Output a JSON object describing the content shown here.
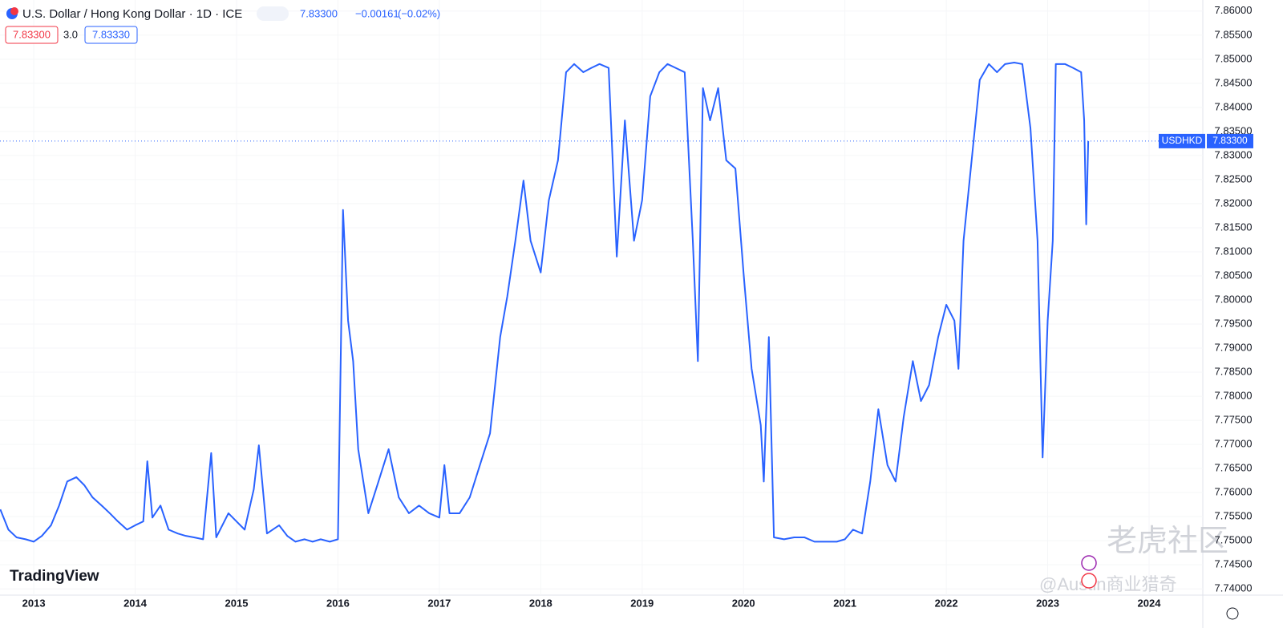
{
  "header": {
    "title": "U.S. Dollar / Hong Kong Dollar · 1D · ICE",
    "price": "7.83300",
    "change": "−0.00161",
    "change_pct": "(−0.02%)",
    "bid": "7.83300",
    "spread": "3.0",
    "ask": "7.83330"
  },
  "branding": {
    "logo": "TradingView",
    "watermark": "老虎社区",
    "credit": "@Austin商业猎奇"
  },
  "price_tag": {
    "symbol": "USDHKD",
    "value": 7.833,
    "label": "7.83300"
  },
  "chart_data": {
    "type": "line",
    "xlim": [
      2012.667,
      2024.53
    ],
    "xticks": [
      2013,
      2014,
      2015,
      2016,
      2017,
      2018,
      2019,
      2020,
      2021,
      2022,
      2023,
      2024
    ],
    "ylim": [
      7.7387,
      7.8623
    ],
    "yticks": [
      {
        "value": 7.74,
        "label": "7.74000"
      },
      {
        "value": 7.745,
        "label": "7.74500"
      },
      {
        "value": 7.75,
        "label": "7.75000"
      },
      {
        "value": 7.755,
        "label": "7.75500"
      },
      {
        "value": 7.76,
        "label": "7.76000"
      },
      {
        "value": 7.765,
        "label": "7.76500"
      },
      {
        "value": 7.77,
        "label": "7.77000"
      },
      {
        "value": 7.775,
        "label": "7.77500"
      },
      {
        "value": 7.78,
        "label": "7.78000"
      },
      {
        "value": 7.785,
        "label": "7.78500"
      },
      {
        "value": 7.79,
        "label": "7.79000"
      },
      {
        "value": 7.795,
        "label": "7.79500"
      },
      {
        "value": 7.8,
        "label": "7.80000"
      },
      {
        "value": 7.805,
        "label": "7.80500"
      },
      {
        "value": 7.81,
        "label": "7.81000"
      },
      {
        "value": 7.815,
        "label": "7.81500"
      },
      {
        "value": 7.82,
        "label": "7.82000"
      },
      {
        "value": 7.825,
        "label": "7.82500"
      },
      {
        "value": 7.83,
        "label": "7.83000"
      },
      {
        "value": 7.835,
        "label": "7.83500"
      },
      {
        "value": 7.84,
        "label": "7.84000"
      },
      {
        "value": 7.845,
        "label": "7.84500"
      },
      {
        "value": 7.85,
        "label": "7.85000"
      },
      {
        "value": 7.855,
        "label": "7.85500"
      },
      {
        "value": 7.86,
        "label": "7.86000"
      }
    ],
    "grid": true,
    "x": [
      2012.67,
      2012.75,
      2012.83,
      2012.92,
      2013.0,
      2013.08,
      2013.17,
      2013.25,
      2013.33,
      2013.42,
      2013.5,
      2013.58,
      2013.67,
      2013.75,
      2013.83,
      2013.92,
      2014.0,
      2014.08,
      2014.12,
      2014.17,
      2014.25,
      2014.33,
      2014.42,
      2014.5,
      2014.58,
      2014.67,
      2014.75,
      2014.8,
      2014.92,
      2015.0,
      2015.08,
      2015.17,
      2015.22,
      2015.3,
      2015.42,
      2015.5,
      2015.58,
      2015.67,
      2015.75,
      2015.83,
      2015.92,
      2016.0,
      2016.05,
      2016.1,
      2016.15,
      2016.2,
      2016.3,
      2016.4,
      2016.5,
      2016.6,
      2016.7,
      2016.8,
      2016.9,
      2017.0,
      2017.05,
      2017.1,
      2017.2,
      2017.3,
      2017.4,
      2017.5,
      2017.6,
      2017.67,
      2017.75,
      2017.83,
      2017.9,
      2018.0,
      2018.08,
      2018.17,
      2018.25,
      2018.33,
      2018.42,
      2018.5,
      2018.58,
      2018.67,
      2018.75,
      2018.83,
      2018.92,
      2019.0,
      2019.08,
      2019.17,
      2019.25,
      2019.33,
      2019.42,
      2019.5,
      2019.55,
      2019.6,
      2019.67,
      2019.75,
      2019.83,
      2019.92,
      2020.0,
      2020.08,
      2020.17,
      2020.2,
      2020.25,
      2020.3,
      2020.4,
      2020.5,
      2020.6,
      2020.7,
      2020.8,
      2020.92,
      2021.0,
      2021.08,
      2021.17,
      2021.25,
      2021.33,
      2021.42,
      2021.5,
      2021.58,
      2021.67,
      2021.75,
      2021.83,
      2021.92,
      2022.0,
      2022.08,
      2022.12,
      2022.17,
      2022.25,
      2022.33,
      2022.42,
      2022.5,
      2022.58,
      2022.67,
      2022.75,
      2022.83,
      2022.9,
      2022.95,
      2023.0,
      2023.05,
      2023.08,
      2023.17,
      2023.25,
      2023.33,
      2023.36,
      2023.38,
      2023.4
    ],
    "series": [
      {
        "name": "USDHKD",
        "color": "#2962ff",
        "values": [
          7.7565,
          7.7523,
          7.7507,
          7.7503,
          7.7498,
          7.751,
          7.7532,
          7.7573,
          7.7623,
          7.7632,
          7.7615,
          7.759,
          7.7573,
          7.7557,
          7.754,
          7.7523,
          7.7532,
          7.754,
          7.7665,
          7.7548,
          7.7573,
          7.7523,
          7.7515,
          7.751,
          7.7507,
          7.7503,
          7.7682,
          7.7507,
          7.7557,
          7.754,
          7.7523,
          7.7607,
          7.7698,
          7.7515,
          7.7532,
          7.751,
          7.7498,
          7.7503,
          7.7498,
          7.7503,
          7.7498,
          7.7503,
          7.8187,
          7.7957,
          7.7873,
          7.769,
          7.7557,
          7.7623,
          7.769,
          7.759,
          7.7557,
          7.7573,
          7.7557,
          7.7548,
          7.7657,
          7.7557,
          7.7557,
          7.759,
          7.7657,
          7.7723,
          7.7923,
          7.8007,
          7.8123,
          7.8248,
          7.8123,
          7.8057,
          7.8207,
          7.829,
          7.8473,
          7.849,
          7.8473,
          7.8482,
          7.849,
          7.8482,
          7.809,
          7.8373,
          7.8123,
          7.8207,
          7.8423,
          7.8473,
          7.849,
          7.8482,
          7.8473,
          7.8123,
          7.7873,
          7.844,
          7.8373,
          7.844,
          7.829,
          7.8273,
          7.8057,
          7.7857,
          7.774,
          7.7623,
          7.7923,
          7.7507,
          7.7503,
          7.7507,
          7.7507,
          7.7498,
          7.7498,
          7.7498,
          7.7503,
          7.7523,
          7.7515,
          7.7623,
          7.7773,
          7.7657,
          7.7623,
          7.7757,
          7.7873,
          7.779,
          7.7823,
          7.7923,
          7.799,
          7.7957,
          7.7857,
          7.8123,
          7.829,
          7.8457,
          7.849,
          7.8473,
          7.849,
          7.8493,
          7.849,
          7.8357,
          7.8123,
          7.7673,
          7.7957,
          7.8123,
          7.849,
          7.849,
          7.8482,
          7.8473,
          7.8373,
          7.8157,
          7.833
        ]
      }
    ]
  }
}
